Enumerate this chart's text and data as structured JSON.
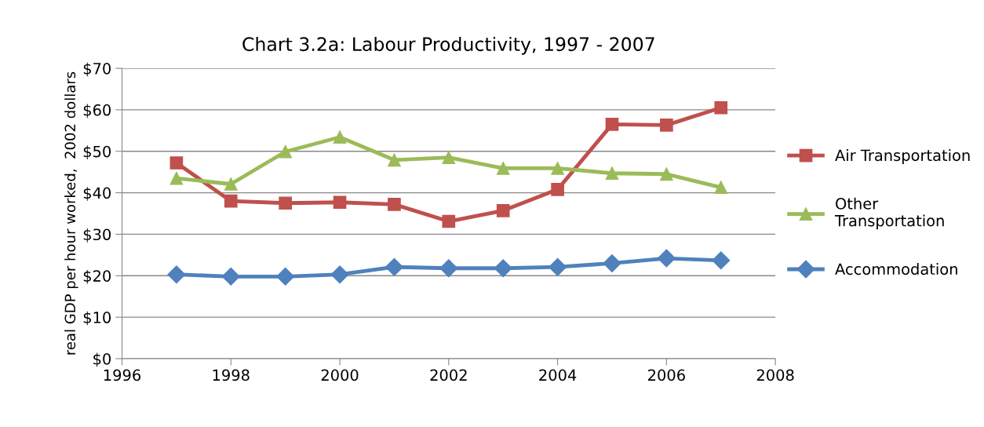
{
  "chart_data": {
    "type": "line",
    "title": "Chart 3.2a: Labour Productivity, 1997 - 2007",
    "ylabel": "real GDP per hour worked,  2002 dollars",
    "x": [
      1997,
      1998,
      1999,
      2000,
      2001,
      2002,
      2003,
      2004,
      2005,
      2006,
      2007
    ],
    "series": [
      {
        "name": "Air Transportation",
        "color": "#c0504d",
        "marker": "square",
        "values": [
          47.2,
          38.0,
          37.5,
          37.7,
          37.2,
          33.1,
          35.7,
          40.8,
          56.5,
          56.3,
          60.5
        ]
      },
      {
        "name": "Other\nTransportation",
        "color": "#9bbb59",
        "marker": "triangle",
        "values": [
          43.5,
          42.1,
          49.9,
          53.4,
          47.9,
          48.5,
          45.9,
          45.9,
          44.7,
          44.5,
          41.3
        ]
      },
      {
        "name": "Accommodation",
        "color": "#4f81bd",
        "marker": "diamond",
        "values": [
          20.3,
          19.8,
          19.8,
          20.3,
          22.1,
          21.8,
          21.8,
          22.1,
          23.0,
          24.2,
          23.7
        ]
      }
    ],
    "xlim": [
      1996,
      2008
    ],
    "xticks": [
      1996,
      1998,
      2000,
      2002,
      2004,
      2006,
      2008
    ],
    "ylim": [
      0,
      70
    ],
    "yticks": [
      {
        "value": 0,
        "label": "$0"
      },
      {
        "value": 10,
        "label": "$10"
      },
      {
        "value": 20,
        "label": "$20"
      },
      {
        "value": 30,
        "label": "$30"
      },
      {
        "value": 40,
        "label": "$40"
      },
      {
        "value": 50,
        "label": "$50"
      },
      {
        "value": 60,
        "label": "$60"
      },
      {
        "value": 70,
        "label": "$70"
      }
    ],
    "grid": "y",
    "legend": "right",
    "line_style": "solid"
  }
}
